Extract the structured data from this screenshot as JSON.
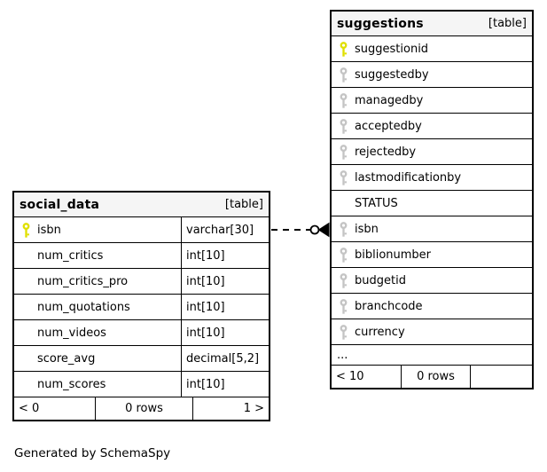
{
  "page": {
    "caption": "Generated by SchemaSpy"
  },
  "colors": {
    "primary_key": "#e0e000",
    "index_key": "#c4c4c4",
    "header_bg": "#f5f5f5",
    "border": "#000000"
  },
  "tables": [
    {
      "name": "suggestions",
      "tag": "[table]",
      "columns": [
        {
          "name": "suggestionid",
          "key": "primary"
        },
        {
          "name": "suggestedby",
          "key": "index"
        },
        {
          "name": "managedby",
          "key": "index"
        },
        {
          "name": "acceptedby",
          "key": "index"
        },
        {
          "name": "rejectedby",
          "key": "index"
        },
        {
          "name": "lastmodificationby",
          "key": "index"
        },
        {
          "name": "STATUS",
          "key": null
        },
        {
          "name": "isbn",
          "key": "index"
        },
        {
          "name": "biblionumber",
          "key": "index"
        },
        {
          "name": "budgetid",
          "key": "index"
        },
        {
          "name": "branchcode",
          "key": "index"
        },
        {
          "name": "currency",
          "key": "index"
        }
      ],
      "ellipsis": "...",
      "footer": {
        "left": "< 10",
        "center": "0 rows",
        "right": ""
      }
    },
    {
      "name": "social_data",
      "tag": "[table]",
      "columns": [
        {
          "name": "isbn",
          "type": "varchar[30]",
          "key": "primary"
        },
        {
          "name": "num_critics",
          "type": "int[10]",
          "key": null
        },
        {
          "name": "num_critics_pro",
          "type": "int[10]",
          "key": null
        },
        {
          "name": "num_quotations",
          "type": "int[10]",
          "key": null
        },
        {
          "name": "num_videos",
          "type": "int[10]",
          "key": null
        },
        {
          "name": "score_avg",
          "type": "decimal[5,2]",
          "key": null
        },
        {
          "name": "num_scores",
          "type": "int[10]",
          "key": null
        }
      ],
      "footer": {
        "left": "< 0",
        "center": "0 rows",
        "right": "1 >"
      }
    }
  ],
  "relationship": {
    "from_table": "social_data",
    "from_column": "isbn",
    "to_table": "suggestions",
    "to_column": "isbn",
    "line_style": "dashed"
  }
}
